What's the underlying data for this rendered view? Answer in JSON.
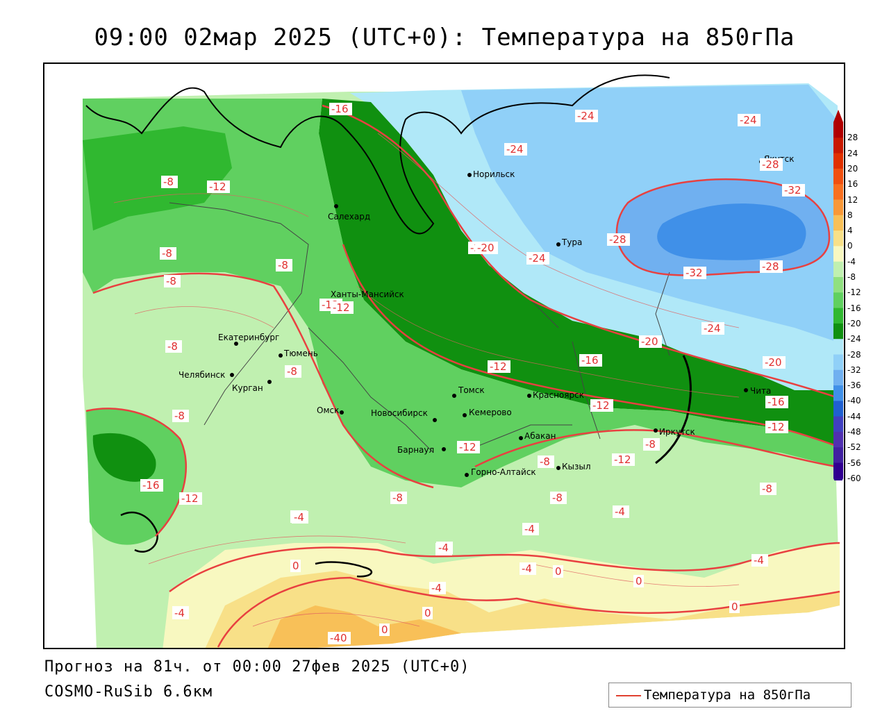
{
  "title": "09:00 02мар 2025 (UTC+0): Температура на 850гПа",
  "forecast_line": "Прогноз на 81ч. от 00:00 27фев 2025 (UTC+0)",
  "model_line": "COSMO-RuSib 6.6км",
  "legend_label": "Температура на 850гПа",
  "colorbar": {
    "labels": [
      "28",
      "24",
      "20",
      "16",
      "12",
      "8",
      "4",
      "0",
      "-4",
      "-8",
      "-12",
      "-16",
      "-20",
      "-24",
      "-28",
      "-32",
      "-36",
      "-40",
      "-44",
      "-48",
      "-52",
      "-56",
      "-60"
    ],
    "colors": [
      "#b00000",
      "#c81800",
      "#e03000",
      "#f05010",
      "#f87020",
      "#f89838",
      "#f8c058",
      "#f8e088",
      "#f8f8c0",
      "#c0f0b0",
      "#90e080",
      "#60d060",
      "#30b830",
      "#109010",
      "#b0e8f8",
      "#90d0f8",
      "#70b0f0",
      "#4090e8",
      "#2060d0",
      "#4040c0",
      "#5030b0",
      "#4020a0",
      "#300090"
    ]
  },
  "cities": [
    {
      "name": "Салехард"
    },
    {
      "name": "Норильск"
    },
    {
      "name": "Якутск"
    },
    {
      "name": "Тура"
    },
    {
      "name": "Ханты-Мансийск"
    },
    {
      "name": "Екатеринбург"
    },
    {
      "name": "Тюмень"
    },
    {
      "name": "Челябинск"
    },
    {
      "name": "Курган"
    },
    {
      "name": "Омск"
    },
    {
      "name": "Новосибирск"
    },
    {
      "name": "Томск"
    },
    {
      "name": "Кемерово"
    },
    {
      "name": "Красноярск"
    },
    {
      "name": "Барнаул"
    },
    {
      "name": "Абакан"
    },
    {
      "name": "Горно-Алтайск"
    },
    {
      "name": "Кызыл"
    },
    {
      "name": "Иркутск"
    },
    {
      "name": "Чита"
    }
  ],
  "contour_labels": [
    "-16",
    "-8",
    "-12",
    "-8",
    "-8",
    "-8",
    "-12",
    "-8",
    "-8",
    "-8",
    "-16",
    "-12",
    "-4",
    "0",
    "-4",
    "-4",
    "-40",
    "0",
    "-4",
    "0",
    "-4",
    "-8",
    "-12",
    "-12",
    "-16",
    "-20",
    "-20",
    "-24",
    "-24",
    "-24",
    "-24",
    "-28",
    "-32",
    "-28",
    "-32",
    "-28",
    "-24",
    "-20",
    "-16",
    "-12",
    "-12",
    "-8",
    "-8",
    "-12",
    "-8",
    "-4",
    "-4",
    "-4",
    "-4",
    "-8",
    "0",
    "0",
    "-4",
    "0",
    "-4",
    "-12",
    "-20"
  ]
}
